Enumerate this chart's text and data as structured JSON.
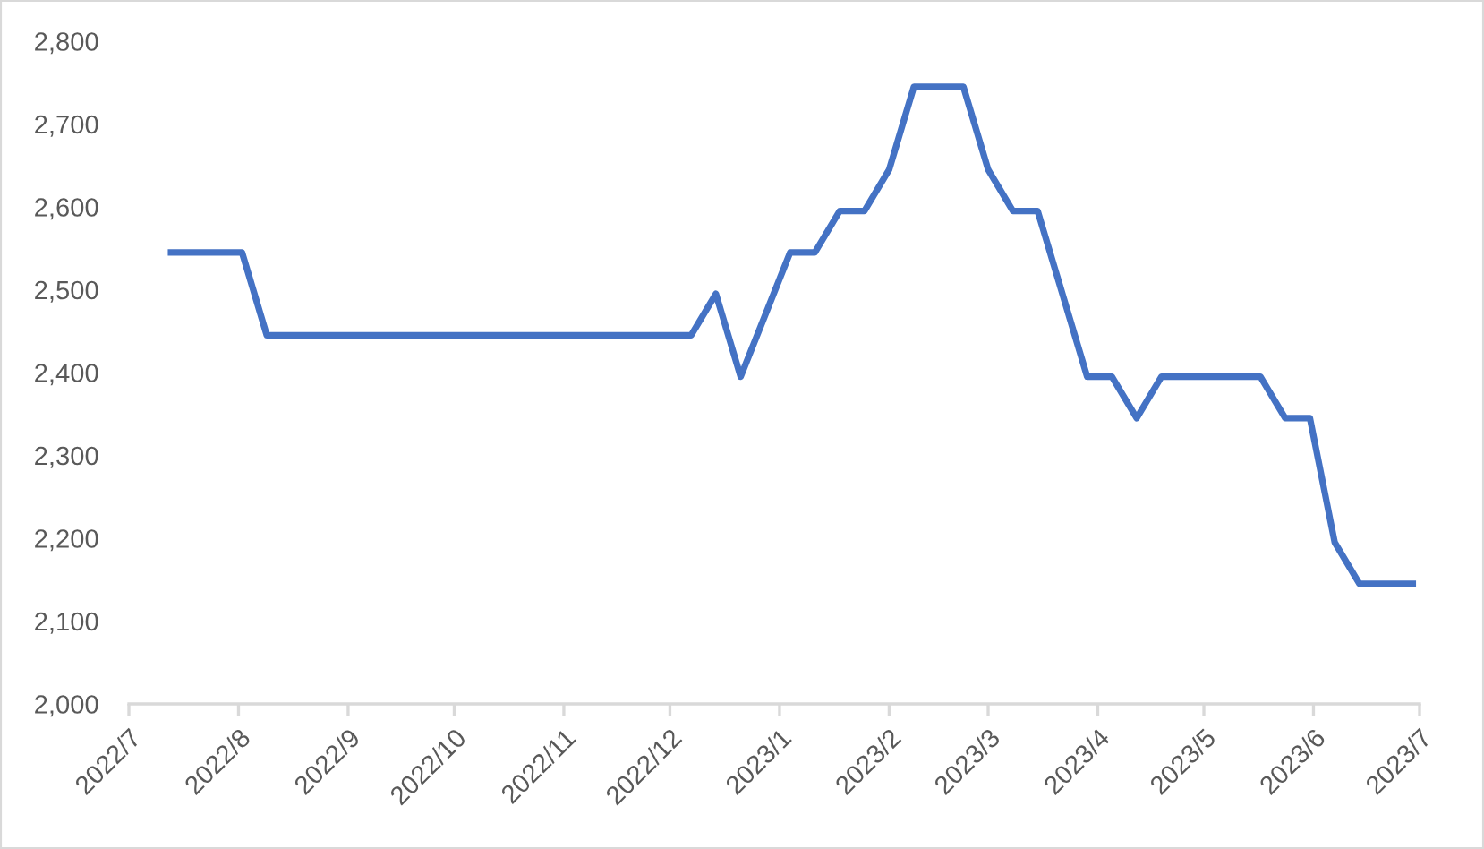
{
  "chart_data": {
    "type": "line",
    "x": [
      "2022-07-12",
      "2022-08-02",
      "2022-08-09",
      "2022-12-07",
      "2022-12-14",
      "2022-12-21",
      "2023-01-04",
      "2023-01-11",
      "2023-01-18",
      "2023-01-25",
      "2023-02-01",
      "2023-02-08",
      "2023-02-22",
      "2023-03-01",
      "2023-03-08",
      "2023-03-15",
      "2023-03-29",
      "2023-04-05",
      "2023-04-12",
      "2023-04-19",
      "2023-05-17",
      "2023-05-24",
      "2023-05-31",
      "2023-06-07",
      "2023-06-14",
      "2023-06-30"
    ],
    "series": [
      {
        "color": "#4472c4",
        "values": [
          2545,
          2545,
          2445,
          2445,
          2495,
          2395,
          2545,
          2545,
          2595,
          2595,
          2645,
          2745,
          2745,
          2645,
          2595,
          2595,
          2395,
          2395,
          2345,
          2395,
          2395,
          2345,
          2345,
          2195,
          2145,
          2145
        ]
      }
    ],
    "xlim": [
      "2022-07",
      "2023-07"
    ],
    "xticks": [
      {
        "value": "2022-07",
        "label": "2022/7"
      },
      {
        "value": "2022-08",
        "label": "2022/8"
      },
      {
        "value": "2022-09",
        "label": "2022/9"
      },
      {
        "value": "2022-10",
        "label": "2022/10"
      },
      {
        "value": "2022-11",
        "label": "2022/11"
      },
      {
        "value": "2022-12",
        "label": "2022/12"
      },
      {
        "value": "2023-01",
        "label": "2023/1"
      },
      {
        "value": "2023-02",
        "label": "2023/2"
      },
      {
        "value": "2023-03",
        "label": "2023/3"
      },
      {
        "value": "2023-04",
        "label": "2023/4"
      },
      {
        "value": "2023-05",
        "label": "2023/5"
      },
      {
        "value": "2023-06",
        "label": "2023/6"
      },
      {
        "value": "2023-07",
        "label": "2023/7"
      }
    ],
    "ylim": [
      2000,
      2800
    ],
    "yticks": [
      {
        "value": 2000,
        "label": "2,000"
      },
      {
        "value": 2100,
        "label": "2,100"
      },
      {
        "value": 2200,
        "label": "2,200"
      },
      {
        "value": 2300,
        "label": "2,300"
      },
      {
        "value": 2400,
        "label": "2,400"
      },
      {
        "value": 2500,
        "label": "2,500"
      },
      {
        "value": 2600,
        "label": "2,600"
      },
      {
        "value": 2700,
        "label": "2,700"
      },
      {
        "value": 2800,
        "label": "2,800"
      }
    ],
    "grid": false,
    "legend": false,
    "marker": "none",
    "line_style": "solid"
  }
}
